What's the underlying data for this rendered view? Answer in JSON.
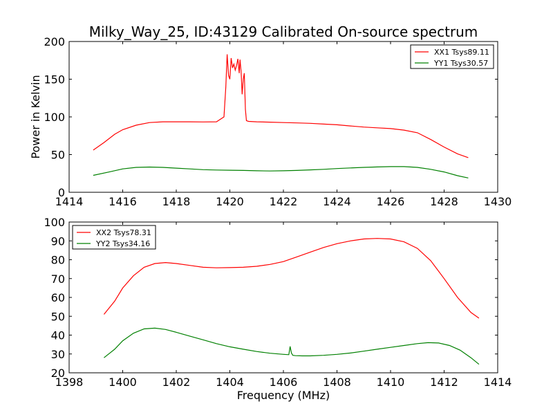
{
  "chart_data": [
    {
      "type": "line",
      "title": "Milky_Way_25, ID:43129 Calibrated On-source spectrum",
      "xlabel": "",
      "ylabel": "Power in Kelvin",
      "xlim": [
        1414,
        1430
      ],
      "ylim": [
        0,
        200
      ],
      "xticks": [
        1414,
        1416,
        1418,
        1420,
        1422,
        1424,
        1426,
        1428,
        1430
      ],
      "yticks": [
        0,
        50,
        100,
        150,
        200
      ],
      "legend_position": "top-right",
      "series": [
        {
          "name": "XX1 Tsys89.11",
          "color": "#ff0000",
          "x": [
            1414.9,
            1415.3,
            1415.7,
            1416.0,
            1416.5,
            1417.0,
            1417.5,
            1418.0,
            1418.5,
            1419.0,
            1419.5,
            1419.78,
            1419.85,
            1419.9,
            1419.95,
            1420.0,
            1420.05,
            1420.1,
            1420.15,
            1420.2,
            1420.25,
            1420.3,
            1420.35,
            1420.38,
            1420.42,
            1420.46,
            1420.5,
            1420.54,
            1420.58,
            1420.62,
            1420.7,
            1421.0,
            1421.5,
            1422.0,
            1422.5,
            1423.0,
            1423.5,
            1424.0,
            1424.5,
            1425.0,
            1425.5,
            1426.0,
            1426.5,
            1427.0,
            1427.5,
            1428.0,
            1428.5,
            1428.9
          ],
          "y": [
            56,
            66,
            77,
            83,
            89,
            92.5,
            93.5,
            93.5,
            93.5,
            93.3,
            93.5,
            100,
            140,
            183,
            155,
            150,
            178,
            165,
            170,
            162,
            168,
            177,
            158,
            176,
            160,
            130,
            150,
            158,
            110,
            95,
            94,
            93.5,
            93,
            92.5,
            92,
            91.5,
            90.5,
            89.5,
            88,
            86.5,
            85.5,
            84.5,
            82.5,
            79,
            70,
            60,
            51,
            46
          ]
        },
        {
          "name": "YY1 Tsys30.57",
          "color": "#008000",
          "x": [
            1414.9,
            1415.5,
            1416.0,
            1416.5,
            1417.0,
            1417.5,
            1418.0,
            1418.5,
            1419.0,
            1419.5,
            1420.0,
            1420.5,
            1421.0,
            1421.5,
            1422.0,
            1422.5,
            1423.0,
            1423.5,
            1424.0,
            1424.5,
            1425.0,
            1425.5,
            1426.0,
            1426.5,
            1427.0,
            1427.5,
            1428.0,
            1428.5,
            1428.9
          ],
          "y": [
            22.5,
            27,
            31,
            33,
            33.5,
            33,
            32,
            31,
            30,
            29.5,
            29.3,
            29,
            28.5,
            28.3,
            28.5,
            29,
            29.7,
            30.5,
            31.5,
            32.3,
            33,
            33.6,
            34,
            34,
            33,
            30.5,
            27,
            22,
            19
          ]
        }
      ]
    },
    {
      "type": "line",
      "title": "",
      "xlabel": "Frequency (MHz)",
      "ylabel": "",
      "xlim": [
        1398,
        1414
      ],
      "ylim": [
        20,
        100
      ],
      "xticks": [
        1398,
        1400,
        1402,
        1404,
        1406,
        1408,
        1410,
        1412,
        1414
      ],
      "yticks": [
        20,
        30,
        40,
        50,
        60,
        70,
        80,
        90,
        100
      ],
      "legend_position": "top-left",
      "series": [
        {
          "name": "XX2 Tsys78.31",
          "color": "#ff0000",
          "x": [
            1399.3,
            1399.7,
            1400.0,
            1400.4,
            1400.8,
            1401.2,
            1401.6,
            1402.0,
            1402.5,
            1403.0,
            1403.5,
            1404.0,
            1404.5,
            1405.0,
            1405.5,
            1406.0,
            1406.5,
            1407.0,
            1407.5,
            1408.0,
            1408.5,
            1409.0,
            1409.5,
            1410.0,
            1410.5,
            1411.0,
            1411.5,
            1412.0,
            1412.5,
            1413.0,
            1413.3
          ],
          "y": [
            51,
            58,
            65,
            71.5,
            76,
            78,
            78.5,
            78,
            77,
            76,
            75.7,
            75.8,
            76,
            76.5,
            77.5,
            79,
            81.5,
            84,
            86.5,
            88.5,
            90,
            91,
            91.3,
            91,
            89.5,
            86,
            79.5,
            70,
            60,
            52,
            49
          ]
        },
        {
          "name": "YY2 Tsys34.16",
          "color": "#008000",
          "x": [
            1399.3,
            1399.7,
            1400.0,
            1400.4,
            1400.8,
            1401.2,
            1401.6,
            1402.0,
            1402.5,
            1403.0,
            1403.5,
            1404.0,
            1404.5,
            1405.0,
            1405.5,
            1406.0,
            1406.2,
            1406.25,
            1406.3,
            1406.35,
            1406.45,
            1406.7,
            1407.0,
            1407.5,
            1408.0,
            1408.5,
            1409.0,
            1409.5,
            1410.0,
            1410.5,
            1411.0,
            1411.4,
            1411.8,
            1412.2,
            1412.6,
            1413.0,
            1413.3
          ],
          "y": [
            28,
            32.5,
            37,
            41,
            43.3,
            43.7,
            43,
            41.5,
            39.5,
            37.5,
            35.5,
            33.8,
            32.5,
            31.3,
            30.4,
            29.8,
            29.6,
            34,
            30.5,
            29.3,
            29.1,
            29,
            29,
            29.3,
            29.8,
            30.5,
            31.5,
            32.5,
            33.5,
            34.5,
            35.5,
            36,
            35.8,
            34.5,
            32,
            28,
            24.5
          ]
        }
      ]
    }
  ]
}
